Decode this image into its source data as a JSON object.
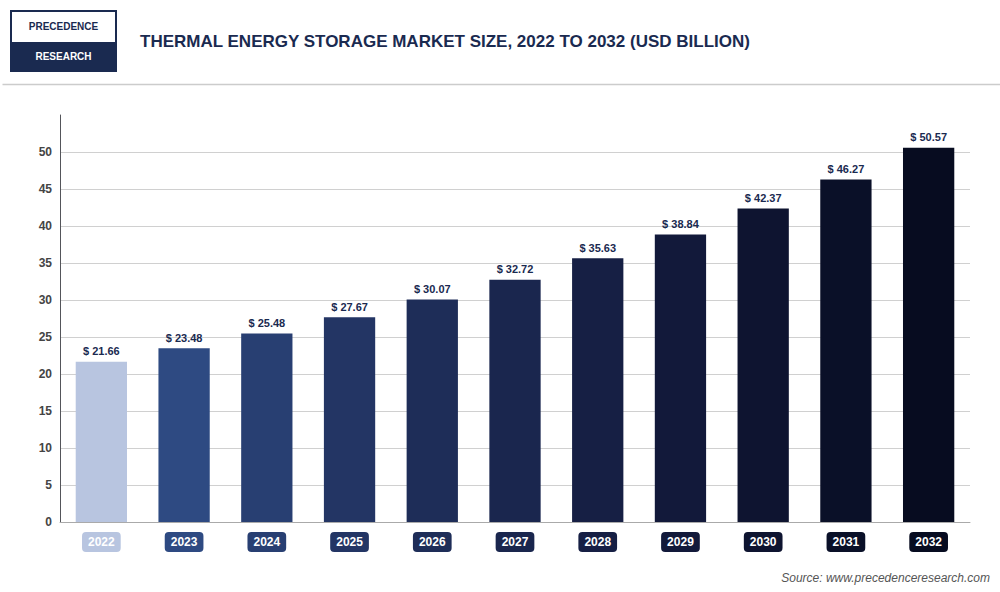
{
  "chart_data": {
    "type": "bar",
    "title": "THERMAL ENERGY STORAGE MARKET SIZE, 2022 TO 2032 (USD BILLION)",
    "categories": [
      "2022",
      "2023",
      "2024",
      "2025",
      "2026",
      "2027",
      "2028",
      "2029",
      "2030",
      "2031",
      "2032"
    ],
    "values": [
      21.66,
      23.48,
      25.48,
      27.67,
      30.07,
      32.72,
      35.63,
      38.84,
      42.37,
      46.27,
      50.57
    ],
    "value_labels": [
      "$ 21.66",
      "$ 23.48",
      "$ 25.48",
      "$ 27.67",
      "$ 30.07",
      "$ 32.72",
      "$ 35.63",
      "$ 38.84",
      "$ 42.37",
      "$ 46.27",
      "$ 50.57"
    ],
    "data_labels": true,
    "colors": [
      "#b8c5e0",
      "#2e4a82",
      "#283f72",
      "#233564",
      "#1e2d58",
      "#1a264e",
      "#161f44",
      "#12193a",
      "#0e1430",
      "#0a1028",
      "#070c20"
    ],
    "ylim": [
      0,
      55
    ],
    "yticks": [
      0,
      5,
      10,
      15,
      20,
      25,
      30,
      35,
      40,
      45,
      50
    ],
    "grid": true,
    "annotations": [
      "PRECEDENCE",
      "RESEARCH",
      "Source: www.precedenceresearch.com"
    ]
  }
}
